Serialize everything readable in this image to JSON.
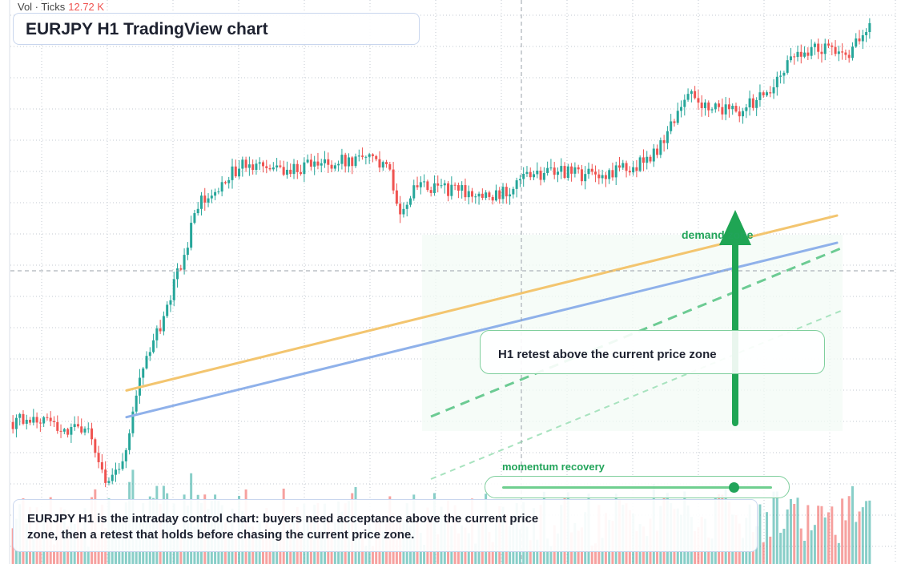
{
  "header": {
    "vol_label": "Vol · Ticks",
    "vol_value": "12.72 K",
    "title": "EURJPY H1 TradingView chart"
  },
  "annotations": {
    "zone_label": "demand zone",
    "retest_note": "H1 retest above the current price zone",
    "slider_label": "momentum recovery",
    "caption": "EURJPY H1 is the intraday control chart: buyers need acceptance above the current price zone, then a retest that holds before chasing the current price zone."
  },
  "slider": {
    "value": 0.86
  },
  "colors": {
    "up": "#26a69a",
    "down": "#ef5350",
    "accent": "#22a45a",
    "trend_orange": "#f3c56f",
    "trend_blue": "#8fb1ea"
  },
  "chart_data": {
    "type": "candlestick",
    "instrument": "EURJPY",
    "timeframe": "H1",
    "title": "EURJPY H1 TradingView chart",
    "price_range": [
      0,
      100
    ],
    "price_note": "Price axis is not labeled; values are relative (0 = bottom of chart, 100 = top).",
    "anchors": [
      [
        0,
        24
      ],
      [
        8,
        25
      ],
      [
        16,
        22
      ],
      [
        22,
        24
      ],
      [
        24,
        18
      ],
      [
        27,
        13
      ],
      [
        32,
        17
      ],
      [
        38,
        34
      ],
      [
        44,
        43
      ],
      [
        50,
        55
      ],
      [
        54,
        64
      ],
      [
        60,
        67
      ],
      [
        66,
        71
      ],
      [
        76,
        70
      ],
      [
        86,
        71
      ],
      [
        95,
        72
      ],
      [
        104,
        72
      ],
      [
        110,
        70
      ],
      [
        113,
        63
      ],
      [
        118,
        67
      ],
      [
        124,
        67
      ],
      [
        134,
        66
      ],
      [
        140,
        65
      ],
      [
        150,
        69
      ],
      [
        160,
        70
      ],
      [
        170,
        69
      ],
      [
        180,
        71
      ],
      [
        186,
        72
      ],
      [
        191,
        77
      ],
      [
        196,
        84
      ],
      [
        204,
        82
      ],
      [
        212,
        81
      ],
      [
        220,
        84
      ],
      [
        228,
        92
      ],
      [
        238,
        93
      ],
      [
        244,
        92
      ],
      [
        250,
        97
      ]
    ],
    "trendlines": [
      {
        "name": "orange-trend",
        "from": [
          0.134,
          29.8
        ],
        "to": [
          0.96,
          61.9
        ]
      },
      {
        "name": "blue-trend",
        "from": [
          0.134,
          24.9
        ],
        "to": [
          0.96,
          56.9
        ]
      }
    ],
    "volume_range": [
      0,
      100
    ],
    "grid": true,
    "legend": "none"
  }
}
